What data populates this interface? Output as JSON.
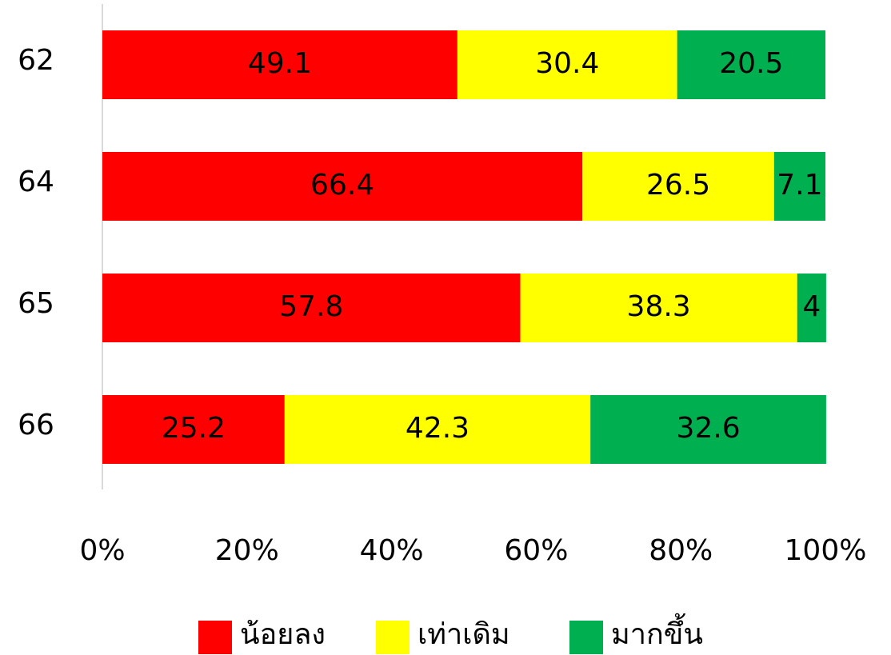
{
  "chart_data": {
    "type": "stacked-bar-horizontal",
    "categories": [
      "62",
      "64",
      "65",
      "66"
    ],
    "series": [
      {
        "name": "น้อยลง",
        "color": "#ff0000",
        "values": [
          49.1,
          66.4,
          57.8,
          25.2
        ]
      },
      {
        "name": "เท่าเดิม",
        "color": "#ffff00",
        "values": [
          30.4,
          26.5,
          38.3,
          42.3
        ]
      },
      {
        "name": "มากขึ้น",
        "color": "#00b050",
        "values": [
          20.5,
          7.1,
          4,
          32.6
        ]
      }
    ],
    "xlim": [
      0,
      100
    ],
    "xticks": [
      {
        "value": 0,
        "label": "0%"
      },
      {
        "value": 20,
        "label": "20%"
      },
      {
        "value": 40,
        "label": "40%"
      },
      {
        "value": 60,
        "label": "60%"
      },
      {
        "value": 80,
        "label": "80%"
      },
      {
        "value": 100,
        "label": "100%"
      }
    ],
    "legend": "bottom"
  }
}
